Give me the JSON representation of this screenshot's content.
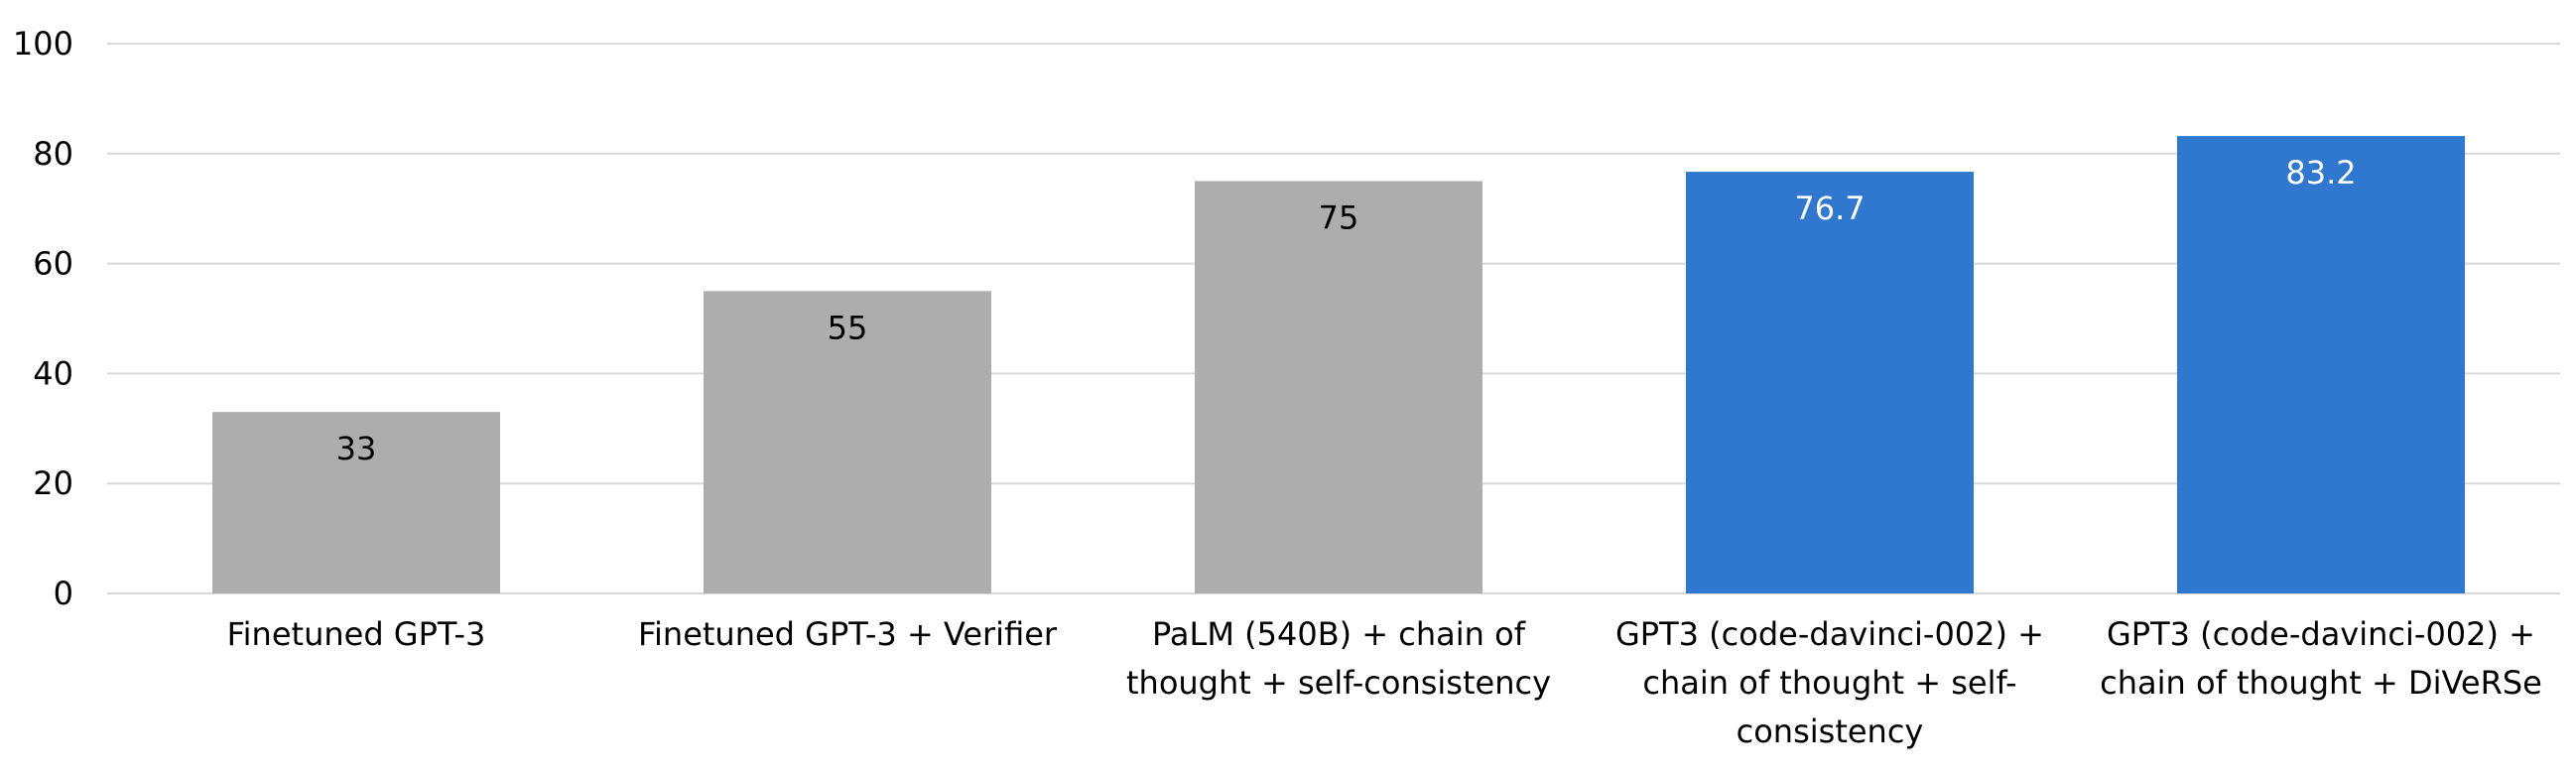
{
  "chart_data": {
    "type": "bar",
    "title": "",
    "xlabel": "",
    "ylabel": "",
    "ylim": [
      0,
      100
    ],
    "yticks": [
      0,
      20,
      40,
      60,
      80,
      100
    ],
    "grid": true,
    "legend": "none",
    "categories": [
      [
        "Finetuned GPT-3"
      ],
      [
        "Finetuned GPT-3 + Verifier"
      ],
      [
        "PaLM (540B) + chain of",
        "thought + self-consistency"
      ],
      [
        "GPT3 (code-davinci-002) +",
        "chain of thought + self-",
        "consistency"
      ],
      [
        "GPT3 (code-davinci-002) +",
        "chain of thought + DiVeRSe"
      ]
    ],
    "values": [
      33,
      55,
      75,
      76.7,
      83.2
    ],
    "data_labels": [
      "33",
      "55",
      "75",
      "76.7",
      "83.2"
    ],
    "bar_colors": [
      "#adadad",
      "#adadad",
      "#adadad",
      "#3078cf",
      "#3078cf"
    ],
    "label_colors": [
      "#000000",
      "#000000",
      "#000000",
      "#ffffff",
      "#ffffff"
    ]
  }
}
